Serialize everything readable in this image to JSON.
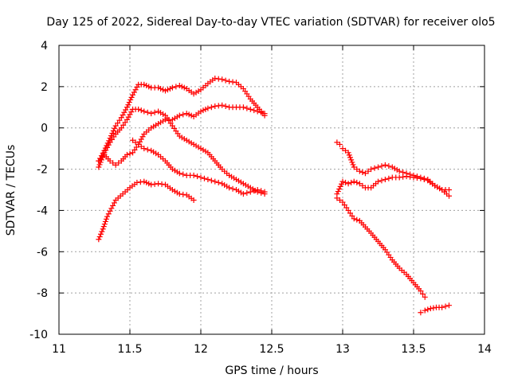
{
  "chart_data": {
    "type": "scatter",
    "title": "Day 125 of 2022, Sidereal Day-to-day VTEC variation (SDTVAR) for receiver olo5",
    "xlabel": "GPS time / hours",
    "ylabel": "SDTVAR / TECUs",
    "xlim": [
      11,
      14
    ],
    "ylim": [
      -10,
      4
    ],
    "xticks": [
      11,
      11.5,
      12,
      12.5,
      13,
      13.5,
      14
    ],
    "xtick_labels": [
      "11",
      "11.5",
      "12",
      "12.5",
      "13",
      "13.5",
      "14"
    ],
    "yticks": [
      -10,
      -8,
      -6,
      -4,
      -2,
      0,
      2,
      4
    ],
    "ytick_labels": [
      "-10",
      "-8",
      "-6",
      "-4",
      "-2",
      "0",
      "2",
      "4"
    ],
    "grid": true,
    "marker": "+",
    "color": "#ff0000",
    "series": [
      {
        "name": "arc-1",
        "x": [
          11.28,
          11.32,
          11.36,
          11.4,
          11.44,
          11.48,
          11.52,
          11.56,
          11.6,
          11.65,
          11.7,
          11.75,
          11.8,
          11.85,
          11.9,
          11.95,
          12.0,
          12.05,
          12.1,
          12.15,
          12.2,
          12.25,
          12.3,
          12.35,
          12.4,
          12.45
        ],
        "y": [
          -1.6,
          -1.1,
          -0.5,
          0.1,
          0.5,
          1.0,
          1.6,
          2.1,
          2.1,
          1.95,
          1.95,
          1.8,
          1.95,
          2.05,
          1.9,
          1.65,
          1.85,
          2.15,
          2.4,
          2.35,
          2.25,
          2.2,
          1.9,
          1.4,
          1.0,
          0.6
        ]
      },
      {
        "name": "arc-2",
        "x": [
          11.28,
          11.32,
          11.36,
          11.4,
          11.44,
          11.48,
          11.52,
          11.56,
          11.6,
          11.65,
          11.7,
          11.75,
          11.8,
          11.85,
          11.9,
          11.95,
          12.0,
          12.05,
          12.1,
          12.15,
          12.2,
          12.25,
          12.3,
          12.35,
          12.4,
          12.45
        ],
        "y": [
          -1.6,
          -1.3,
          -1.6,
          -1.8,
          -1.6,
          -1.3,
          -1.2,
          -0.8,
          -0.3,
          0.0,
          0.2,
          0.4,
          0.4,
          0.6,
          0.7,
          0.55,
          0.8,
          0.95,
          1.05,
          1.1,
          1.0,
          1.0,
          1.0,
          0.9,
          0.8,
          0.7
        ]
      },
      {
        "name": "arc-3",
        "x": [
          11.28,
          11.32,
          11.36,
          11.4,
          11.44,
          11.48,
          11.52,
          11.56,
          11.6,
          11.65,
          11.7,
          11.75,
          11.8,
          11.85,
          11.9,
          11.95,
          12.0,
          12.05,
          12.1,
          12.15,
          12.2,
          12.25,
          12.3,
          12.35,
          12.4,
          12.45
        ],
        "y": [
          -1.9,
          -1.2,
          -0.7,
          -0.3,
          0.0,
          0.4,
          0.9,
          0.9,
          0.8,
          0.7,
          0.8,
          0.6,
          0.1,
          -0.4,
          -0.6,
          -0.8,
          -1.0,
          -1.2,
          -1.6,
          -2.0,
          -2.3,
          -2.5,
          -2.7,
          -2.9,
          -3.1,
          -3.2
        ]
      },
      {
        "name": "arc-4",
        "x": [
          11.52,
          11.56,
          11.6,
          11.65,
          11.7,
          11.75,
          11.8,
          11.85,
          11.9,
          11.95,
          12.0,
          12.05,
          12.1,
          12.15,
          12.2,
          12.25,
          12.3,
          12.35,
          12.4,
          12.45
        ],
        "y": [
          -0.6,
          -0.8,
          -1.0,
          -1.1,
          -1.3,
          -1.6,
          -2.0,
          -2.2,
          -2.3,
          -2.3,
          -2.4,
          -2.5,
          -2.6,
          -2.7,
          -2.9,
          -3.0,
          -3.2,
          -3.1,
          -3.0,
          -3.1
        ]
      },
      {
        "name": "arc-5",
        "x": [
          11.28,
          11.31,
          11.34,
          11.37,
          11.4,
          11.45,
          11.5,
          11.55,
          11.6,
          11.65,
          11.7,
          11.75,
          11.8,
          11.85,
          11.9,
          11.95
        ],
        "y": [
          -5.4,
          -4.9,
          -4.3,
          -3.9,
          -3.5,
          -3.2,
          -2.9,
          -2.65,
          -2.6,
          -2.75,
          -2.7,
          -2.75,
          -3.0,
          -3.2,
          -3.25,
          -3.5
        ]
      },
      {
        "name": "arc-6",
        "x": [
          12.96,
          12.98,
          13.0,
          13.04,
          13.08,
          13.12,
          13.16,
          13.2,
          13.25,
          13.3,
          13.35,
          13.4,
          13.45,
          13.5,
          13.55,
          13.6,
          13.65,
          13.7,
          13.75
        ],
        "y": [
          -0.7,
          -0.8,
          -1.0,
          -1.2,
          -1.9,
          -2.1,
          -2.2,
          -2.0,
          -1.9,
          -1.8,
          -1.9,
          -2.1,
          -2.2,
          -2.3,
          -2.4,
          -2.5,
          -2.8,
          -3.0,
          -3.3
        ]
      },
      {
        "name": "arc-7",
        "x": [
          12.96,
          13.0,
          13.04,
          13.08,
          13.12,
          13.16,
          13.2,
          13.25,
          13.3,
          13.35,
          13.4,
          13.45,
          13.5,
          13.55,
          13.6,
          13.65,
          13.7,
          13.75
        ],
        "y": [
          -3.2,
          -2.6,
          -2.7,
          -2.6,
          -2.7,
          -2.9,
          -2.9,
          -2.6,
          -2.5,
          -2.4,
          -2.4,
          -2.35,
          -2.4,
          -2.45,
          -2.55,
          -2.8,
          -3.0,
          -3.0
        ]
      },
      {
        "name": "arc-8",
        "x": [
          12.96,
          13.0,
          13.04,
          13.08,
          13.12,
          13.16,
          13.2,
          13.25,
          13.3,
          13.35,
          13.4,
          13.45,
          13.5,
          13.55,
          13.58
        ],
        "y": [
          -3.4,
          -3.6,
          -4.0,
          -4.4,
          -4.5,
          -4.8,
          -5.1,
          -5.5,
          -5.9,
          -6.4,
          -6.8,
          -7.1,
          -7.5,
          -7.9,
          -8.2
        ]
      },
      {
        "name": "arc-9",
        "x": [
          13.55,
          13.58,
          13.62,
          13.66,
          13.7,
          13.75
        ],
        "y": [
          -8.95,
          -8.85,
          -8.75,
          -8.7,
          -8.7,
          -8.6
        ]
      }
    ]
  }
}
